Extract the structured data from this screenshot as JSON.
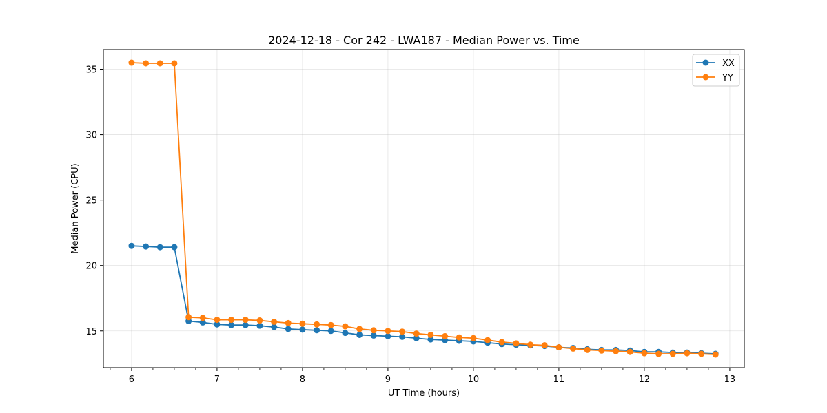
{
  "chart_data": {
    "type": "line",
    "title": "2024-12-18 - Cor 242 - LWA187 - Median Power vs. Time",
    "xlabel": "UT Time (hours)",
    "ylabel": "Median Power (CPU)",
    "xlim": [
      5.67,
      13.17
    ],
    "ylim": [
      12.2,
      36.5
    ],
    "xticks": [
      6,
      7,
      8,
      9,
      10,
      11,
      12,
      13
    ],
    "yticks": [
      15,
      20,
      25,
      30,
      35
    ],
    "grid": true,
    "legend_position": "top-right",
    "x": [
      6.0,
      6.167,
      6.333,
      6.5,
      6.667,
      6.833,
      7.0,
      7.167,
      7.333,
      7.5,
      7.667,
      7.833,
      8.0,
      8.167,
      8.333,
      8.5,
      8.667,
      8.833,
      9.0,
      9.167,
      9.333,
      9.5,
      9.667,
      9.833,
      10.0,
      10.167,
      10.333,
      10.5,
      10.667,
      10.833,
      11.0,
      11.167,
      11.333,
      11.5,
      11.667,
      11.833,
      12.0,
      12.167,
      12.333,
      12.5,
      12.667,
      12.833
    ],
    "series": [
      {
        "name": "XX",
        "color": "#1f77b4",
        "values": [
          21.5,
          21.45,
          21.4,
          21.4,
          15.75,
          15.65,
          15.5,
          15.45,
          15.45,
          15.4,
          15.3,
          15.15,
          15.1,
          15.05,
          15.0,
          14.85,
          14.7,
          14.65,
          14.6,
          14.55,
          14.45,
          14.35,
          14.3,
          14.25,
          14.2,
          14.1,
          14.0,
          13.95,
          13.9,
          13.85,
          13.75,
          13.7,
          13.6,
          13.55,
          13.55,
          13.5,
          13.4,
          13.4,
          13.35,
          13.35,
          13.3,
          13.25
        ]
      },
      {
        "name": "YY",
        "color": "#ff7f0e",
        "values": [
          35.5,
          35.45,
          35.45,
          35.45,
          16.05,
          16.0,
          15.85,
          15.85,
          15.85,
          15.8,
          15.7,
          15.6,
          15.55,
          15.5,
          15.45,
          15.35,
          15.15,
          15.05,
          15.0,
          14.95,
          14.8,
          14.7,
          14.6,
          14.5,
          14.45,
          14.3,
          14.15,
          14.05,
          13.95,
          13.9,
          13.75,
          13.65,
          13.55,
          13.5,
          13.45,
          13.4,
          13.3,
          13.25,
          13.25,
          13.3,
          13.25,
          13.2
        ]
      }
    ]
  }
}
